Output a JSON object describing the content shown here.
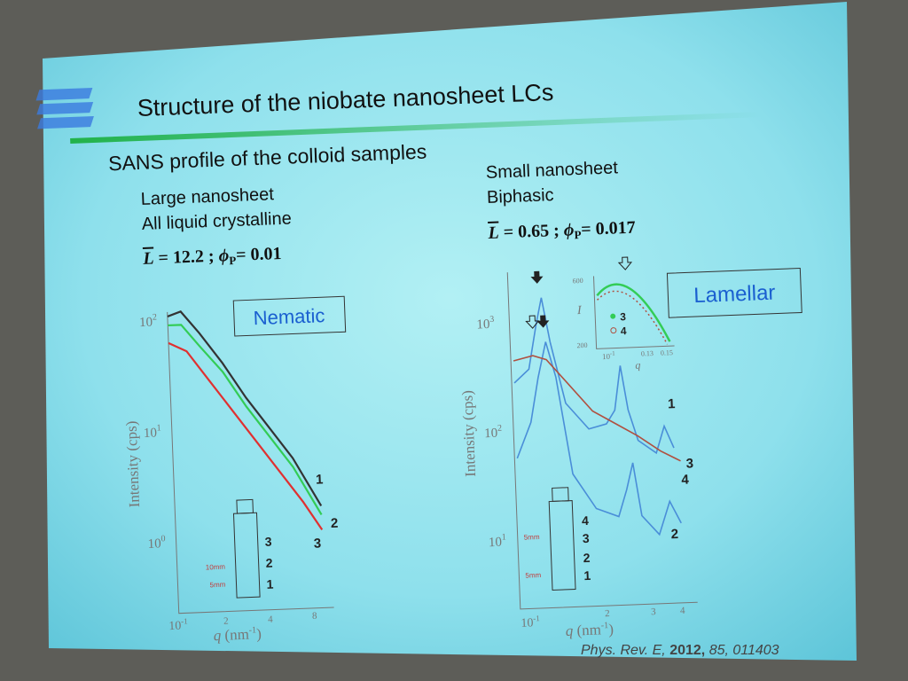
{
  "slide": {
    "title": "Structure of the niobate nanosheet LCs",
    "subtitle": "SANS profile of the colloid samples",
    "citation": {
      "journal": "Phys. Rev. E,",
      "year": "2012,",
      "rest": "85, 011403"
    }
  },
  "left": {
    "heading": [
      "Large nanosheet",
      "All liquid crystalline"
    ],
    "formula": {
      "L": "L",
      "eq1": "= 12.2 ;",
      "phi": "ϕ",
      "sub": "P",
      "eq2": "= 0.01"
    },
    "phase": "Nematic",
    "y_label": "Intensity (cps)",
    "y_ticks": [
      {
        "base": "10",
        "exp": "2"
      },
      {
        "base": "10",
        "exp": "1"
      },
      {
        "base": "10",
        "exp": "0"
      }
    ],
    "x_ticks": [
      {
        "base": "10",
        "exp": "-1"
      },
      {
        "base": "2"
      },
      {
        "base": "4"
      },
      {
        "base": "8"
      }
    ],
    "x_label": {
      "q": "q",
      "unit": "(nm",
      "exp": "-1",
      "close": ")"
    },
    "curve_labels": [
      "1",
      "2",
      "3"
    ],
    "vial_labels": [
      "3",
      "2",
      "1"
    ],
    "vial_marks": [
      "10mm",
      "5mm"
    ]
  },
  "right": {
    "heading": [
      "Small nanosheet",
      "Biphasic"
    ],
    "formula": {
      "L": "L",
      "eq1": "= 0.65 ;",
      "phi": "ϕ",
      "sub": "P",
      "eq2": "= 0.017"
    },
    "phase": "Lamellar",
    "y_label": "Intensity (cps)",
    "y_ticks": [
      {
        "base": "10",
        "exp": "3"
      },
      {
        "base": "10",
        "exp": "2"
      },
      {
        "base": "10",
        "exp": "1"
      }
    ],
    "x_ticks": [
      {
        "base": "10",
        "exp": "-1"
      },
      {
        "base": "2"
      },
      {
        "base": "3"
      },
      {
        "base": "4"
      }
    ],
    "x_label": {
      "q": "q",
      "unit": "(nm",
      "exp": "-1",
      "close": ")"
    },
    "curve_labels": [
      "1",
      "3",
      "4",
      "2"
    ],
    "vial_labels": [
      "4",
      "3",
      "2",
      "1"
    ],
    "vial_marks": [
      "5mm",
      "5mm"
    ],
    "inset": {
      "y_ticks": [
        "600",
        "200"
      ],
      "y_label": "I",
      "x_label": "q",
      "x_ticks": [
        {
          "base": "10",
          "exp": "-1"
        },
        {
          "base": "0.13"
        },
        {
          "base": "0.15"
        }
      ],
      "legend": [
        "3",
        "4"
      ]
    }
  }
}
